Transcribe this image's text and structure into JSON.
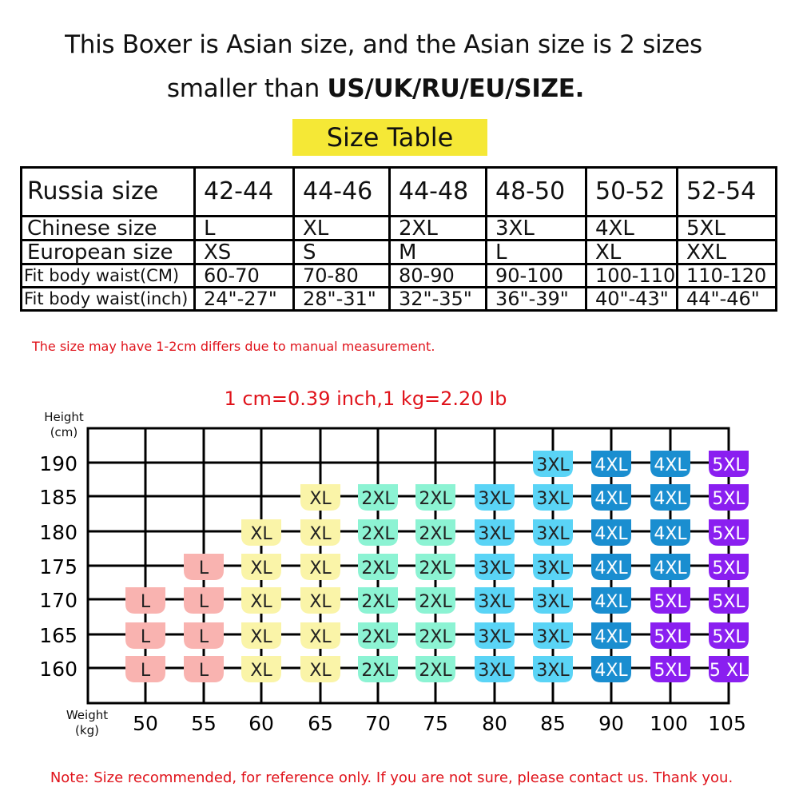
{
  "header": {
    "line1": "This Boxer is Asian size, and the Asian size is 2 sizes",
    "line2_prefix": "smaller than ",
    "line2_bold": "US/UK/RU/EU/SIZE.",
    "table_title": "Size Table"
  },
  "size_table": {
    "rows": [
      {
        "label": "Russia size",
        "values": [
          "42-44",
          "44-46",
          "44-48",
          "48-50",
          "50-52",
          "52-54"
        ]
      },
      {
        "label": "Chinese size",
        "values": [
          "L",
          "XL",
          "2XL",
          "3XL",
          "4XL",
          "5XL"
        ]
      },
      {
        "label": "European size",
        "values": [
          "XS",
          "S",
          "M",
          "L",
          "XL",
          "XXL"
        ]
      },
      {
        "label": "Fit body waist(CM)",
        "values": [
          "60-70",
          "70-80",
          "80-90",
          "90-100",
          "100-110",
          "110-120"
        ]
      },
      {
        "label": "Fit body waist(inch)",
        "values": [
          "24\"-27\"",
          "28\"-31\"",
          "32\"-35\"",
          "36\"-39\"",
          "40\"-43\"",
          "44\"-46\""
        ]
      }
    ]
  },
  "note_top": "The size may have 1-2cm differs due to manual measurement.",
  "conversion": "1 cm=0.39 inch,1 kg=2.20 Ib",
  "size_grid": {
    "y_label_1": "Height",
    "y_label_2": "(cm)",
    "x_label_1": "Weight",
    "x_label_2": "(kg)",
    "heights": [
      190,
      185,
      180,
      175,
      170,
      165,
      160
    ],
    "weights": [
      50,
      55,
      60,
      65,
      70,
      75,
      80,
      85,
      90,
      100,
      105
    ],
    "cells": [
      [
        "",
        "",
        "",
        "",
        "",
        "",
        "",
        "3XL",
        "4XL",
        "4XL",
        "5XL"
      ],
      [
        "",
        "",
        "",
        "XL",
        "2XL",
        "2XL",
        "3XL",
        "3XL",
        "4XL",
        "4XL",
        "5XL"
      ],
      [
        "",
        "",
        "XL",
        "XL",
        "2XL",
        "2XL",
        "3XL",
        "3XL",
        "4XL",
        "4XL",
        "5XL"
      ],
      [
        "",
        "L",
        "XL",
        "XL",
        "2XL",
        "2XL",
        "3XL",
        "3XL",
        "4XL",
        "4XL",
        "5XL"
      ],
      [
        "L",
        "L",
        "XL",
        "XL",
        "2XL",
        "2XL",
        "3XL",
        "3XL",
        "4XL",
        "5XL",
        "5XL"
      ],
      [
        "L",
        "L",
        "XL",
        "XL",
        "2XL",
        "2XL",
        "3XL",
        "3XL",
        "4XL",
        "5XL",
        "5XL"
      ],
      [
        "L",
        "L",
        "XL",
        "XL",
        "2XL",
        "2XL",
        "3XL",
        "3XL",
        "4XL",
        "5XL",
        "5 XL"
      ]
    ],
    "colors": {
      "L": "#f9b3b0",
      "XL": "#faf4a8",
      "2XL": "#8cf3d3",
      "3XL": "#5ad4f6",
      "4XL": "#1a8ed0",
      "5XL": "#8a1ff0"
    },
    "text_colors": {
      "L": "#222222",
      "XL": "#222222",
      "2XL": "#222222",
      "3XL": "#222222",
      "4XL": "#ffffff",
      "5XL": "#ffffff"
    }
  },
  "note_bottom": "Note: Size recommended, for reference only. If you are not sure, please contact us. Thank you."
}
